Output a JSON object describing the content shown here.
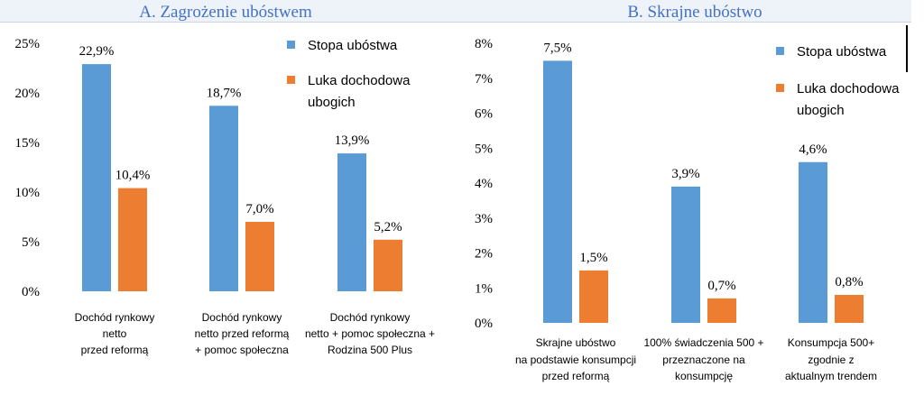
{
  "chart_data": [
    {
      "type": "bar",
      "title": "A.  Zagrożenie ubóstwem",
      "categories": [
        [
          "Dochód rynkowy",
          "netto",
          "przed reformą"
        ],
        [
          "Dochód rynkowy",
          "netto przed reformą",
          "+ pomoc społeczna"
        ],
        [
          "Dochód rynkowy",
          "netto + pomoc społeczna +",
          "Rodzina 500 Plus"
        ]
      ],
      "series": [
        {
          "name": "Stopa ubóstwa",
          "values": [
            22.9,
            18.7,
            13.9
          ],
          "labels": [
            "22,9%",
            "18,7%",
            "13,9%"
          ],
          "color": "#5b9bd5"
        },
        {
          "name": "Luka dochodowa ubogich",
          "values": [
            10.4,
            7.0,
            5.2
          ],
          "labels": [
            "10,4%",
            "7,0%",
            "5,2%"
          ],
          "color": "#ed7d31"
        }
      ],
      "ylim": [
        0,
        25
      ],
      "yticks": [
        "0%",
        "5%",
        "10%",
        "15%",
        "20%",
        "25%"
      ],
      "legend": [
        [
          "Stopa ubóstwa"
        ],
        [
          "Luka dochodowa",
          "ubogich"
        ]
      ],
      "grid": false,
      "legend_position": "top-right"
    },
    {
      "type": "bar",
      "title": "B.  Skrajne ubóstwo",
      "categories": [
        [
          "Skrajne ubóstwo",
          "na podstawie konsumpcji",
          "przed reformą"
        ],
        [
          "100% świadczenia 500 +",
          "przeznaczone na",
          "konsumpcję"
        ],
        [
          "Konsumpcja 500+",
          "zgodnie z",
          "aktualnym trendem"
        ]
      ],
      "series": [
        {
          "name": "Stopa ubóstwa",
          "values": [
            7.5,
            3.9,
            4.6
          ],
          "labels": [
            "7,5%",
            "3,9%",
            "4,6%"
          ],
          "color": "#5b9bd5"
        },
        {
          "name": "Luka dochodowa ubogich",
          "values": [
            1.5,
            0.7,
            0.8
          ],
          "labels": [
            "1,5%",
            "0,7%",
            "0,8%"
          ],
          "color": "#ed7d31"
        }
      ],
      "ylim": [
        0,
        8
      ],
      "yticks": [
        "0%",
        "1%",
        "2%",
        "3%",
        "4%",
        "5%",
        "6%",
        "7%",
        "8%"
      ],
      "legend": [
        [
          "Stopa ubóstwa"
        ],
        [
          "Luka dochodowa",
          "ubogich"
        ]
      ],
      "grid": false,
      "legend_position": "top-right"
    }
  ]
}
